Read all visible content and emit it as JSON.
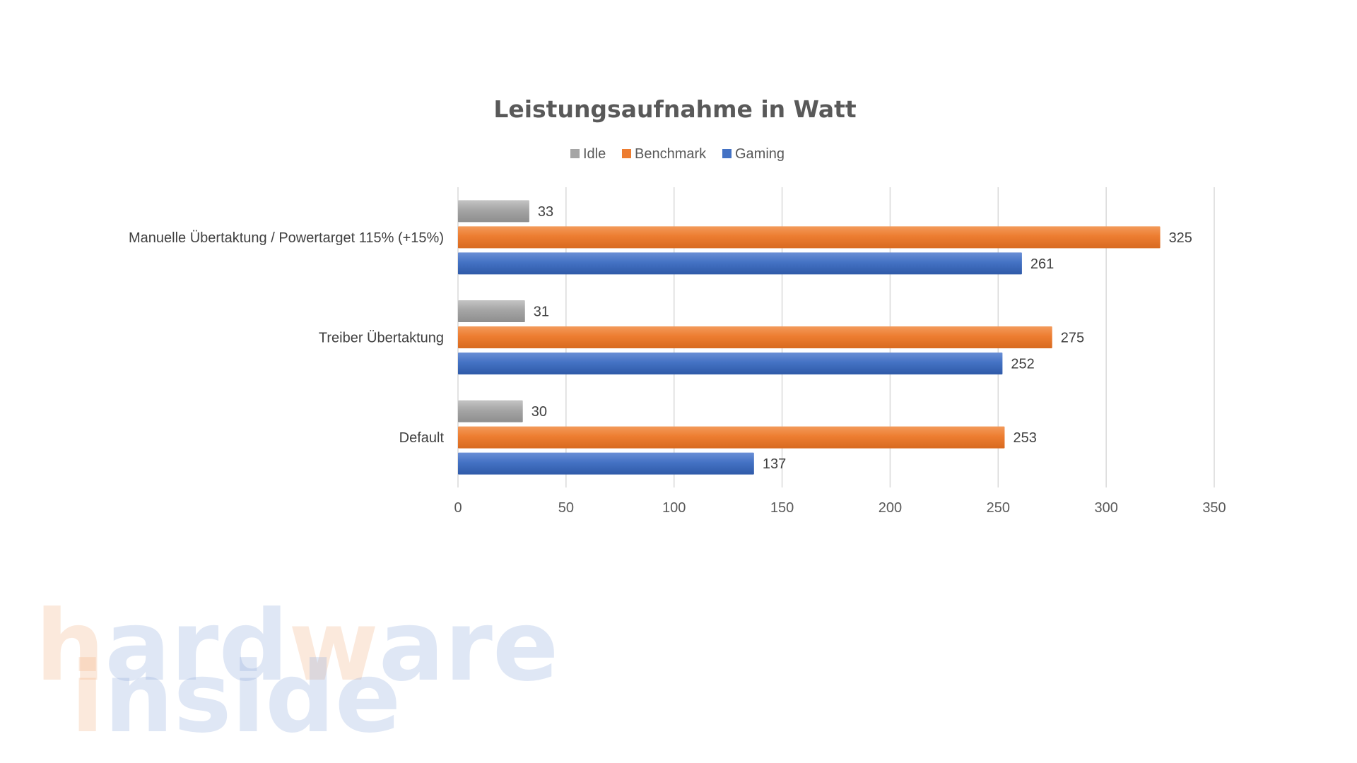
{
  "chart_data": {
    "type": "bar",
    "orientation": "horizontal",
    "title": "Leistungsaufnahme in Watt",
    "categories": [
      "Manuelle Übertaktung / Powertarget 115% (+15%)",
      "Treiber Übertaktung",
      "Default"
    ],
    "series": [
      {
        "name": "Idle",
        "color": "#a5a5a5",
        "values": [
          33,
          31,
          30
        ]
      },
      {
        "name": "Benchmark",
        "color": "#ed7d31",
        "values": [
          325,
          275,
          253
        ]
      },
      {
        "name": "Gaming",
        "color": "#4472c4",
        "values": [
          261,
          252,
          137
        ]
      }
    ],
    "xlim": [
      0,
      350
    ],
    "xticks": [
      0,
      50,
      100,
      150,
      200,
      250,
      300,
      350
    ],
    "grid": true,
    "legend_position": "top",
    "data_labels": true
  },
  "watermark": {
    "line1_parts": [
      {
        "text": "h",
        "color": "#f4b183"
      },
      {
        "text": "ard",
        "color": "#8faadc"
      },
      {
        "text": "w",
        "color": "#f4b183"
      },
      {
        "text": "are",
        "color": "#8faadc"
      }
    ],
    "line2_parts": [
      {
        "text": "i",
        "color": "#f4b183"
      },
      {
        "text": "nside",
        "color": "#8faadc"
      }
    ]
  }
}
